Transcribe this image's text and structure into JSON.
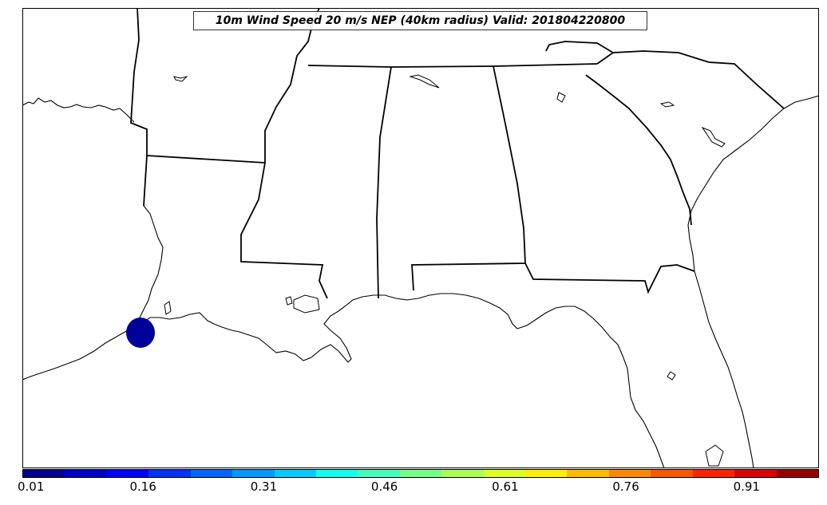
{
  "title": "10m Wind Speed 20 m/s NEP (40km radius) Valid: 201804220800",
  "colorbar": {
    "min": 0.01,
    "max": 1.0,
    "tick_labels": [
      "0.01",
      "0.16",
      "0.31",
      "0.46",
      "0.61",
      "0.76",
      "0.91"
    ],
    "tick_values": [
      0.01,
      0.16,
      0.31,
      0.46,
      0.61,
      0.76,
      0.91
    ],
    "colors": [
      "#00008f",
      "#0000cc",
      "#0000ff",
      "#0033ff",
      "#0066ff",
      "#0099ff",
      "#00ccff",
      "#11ffee",
      "#44ffbb",
      "#77ff88",
      "#aaff55",
      "#ddff22",
      "#ffee00",
      "#ffbb00",
      "#ff8800",
      "#ff5500",
      "#ff2200",
      "#dd0000",
      "#990000"
    ]
  },
  "probability_feature": {
    "label": "NEP area",
    "value": 0.01,
    "color": "#000099"
  }
}
